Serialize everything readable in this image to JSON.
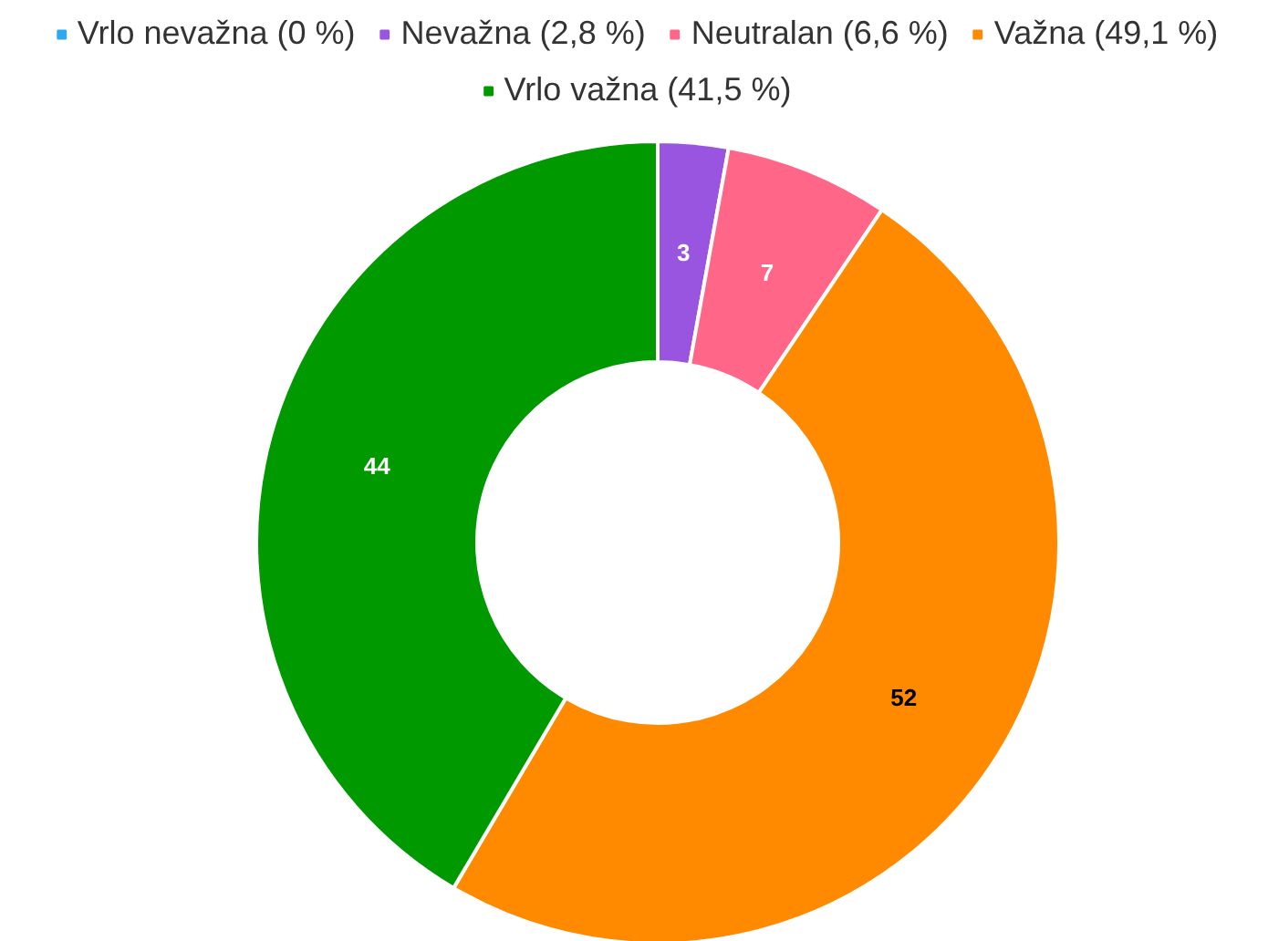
{
  "chart_data": {
    "type": "donut",
    "categories": [
      "Vrlo nevažna (0 %)",
      "Nevažna (2,8 %)",
      "Neutralan (6,6 %)",
      "Važna (49,1 %)",
      "Vrlo važna (41,5 %)"
    ],
    "values": [
      0,
      3,
      7,
      52,
      44
    ],
    "colors": [
      "#2ea8f0",
      "#9955e0",
      "#ff6688",
      "#ff8a00",
      "#009900"
    ],
    "value_labels": [
      null,
      "3",
      "7",
      "52",
      "44"
    ],
    "legend": "top"
  }
}
